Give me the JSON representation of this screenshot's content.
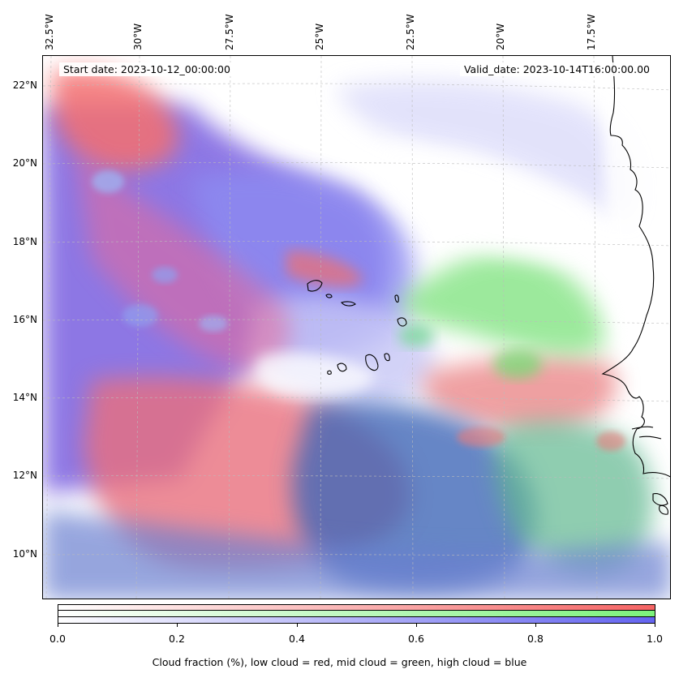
{
  "map": {
    "top_ticks": [
      "32.5°W",
      "30°W",
      "27.5°W",
      "25°W",
      "22.5°W",
      "20°W",
      "17.5°W"
    ],
    "left_ticks": [
      "22°N",
      "20°N",
      "18°N",
      "16°N",
      "14°N",
      "12°N",
      "10°N"
    ],
    "start_date": "Start date: 2023-10-12_00:00:00",
    "valid_date": "Valid_date: 2023-10-14T16:00:00.00"
  },
  "colorbar": {
    "ticks": [
      "0.0",
      "0.2",
      "0.4",
      "0.6",
      "0.8",
      "1.0"
    ],
    "label": "Cloud fraction (%), low cloud = red, mid cloud = green, high cloud = blue",
    "colors": {
      "low": "#f56464",
      "mid": "#7cf27c",
      "high": "#6464f0"
    }
  },
  "colors": {
    "coastline": "#000000",
    "gridline": "#bbbbbb",
    "low_cloud": "#f06a6a",
    "mid_cloud": "#7de87d",
    "high_cloud": "#6b6bf0",
    "deep_mix": "#4060b0"
  }
}
